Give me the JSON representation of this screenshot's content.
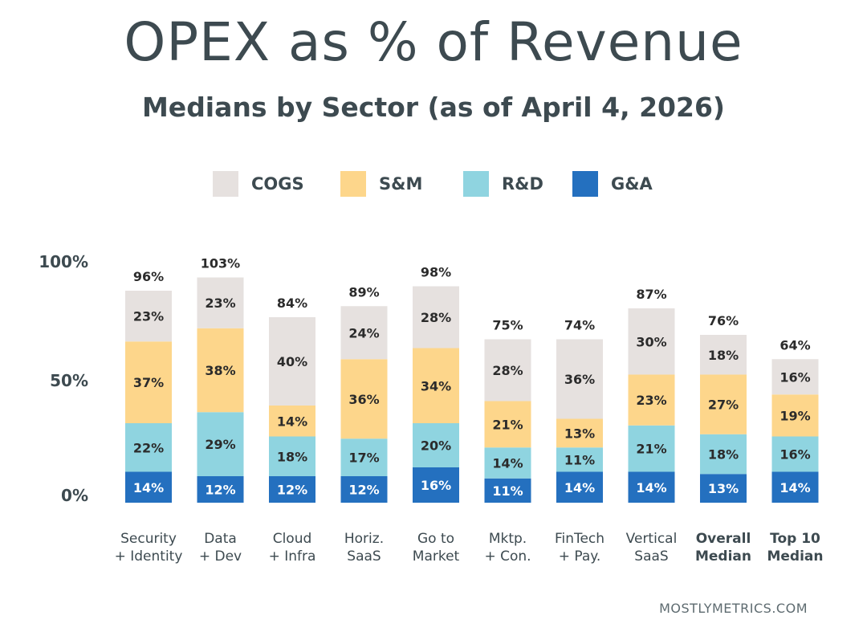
{
  "header": {
    "title": "OPEX as % of Revenue",
    "subtitle": "Medians by Sector (as of  April 4, 2026)"
  },
  "legend": [
    {
      "label": "COGS",
      "color": "#e6e1df"
    },
    {
      "label": "S&M",
      "color": "#fdd68b"
    },
    {
      "label": "R&D",
      "color": "#8fd4e0"
    },
    {
      "label": "G&A",
      "color": "#2470bf"
    }
  ],
  "footer": {
    "source": "MOSTLYMETRICS.COM"
  },
  "chart_data": {
    "type": "bar",
    "stacked": true,
    "ylim": [
      0,
      100
    ],
    "y_ticks": [
      "100%",
      "50%",
      "0%"
    ],
    "categories": [
      {
        "line1": "Security",
        "line2": "+ Identity",
        "bold": false
      },
      {
        "line1": "Data",
        "line2": "+ Dev",
        "bold": false
      },
      {
        "line1": "Cloud",
        "line2": "+ Infra",
        "bold": false
      },
      {
        "line1": "Horiz.",
        "line2": "SaaS",
        "bold": false
      },
      {
        "line1": "Go to",
        "line2": "Market",
        "bold": false
      },
      {
        "line1": "Mktp.",
        "line2": "+ Con.",
        "bold": false
      },
      {
        "line1": "FinTech",
        "line2": "+ Pay.",
        "bold": false
      },
      {
        "line1": "Vertical",
        "line2": "SaaS",
        "bold": false
      },
      {
        "line1": "Overall",
        "line2": "Median",
        "bold": true
      },
      {
        "line1": "Top 10",
        "line2": "Median",
        "bold": true
      }
    ],
    "series": [
      {
        "name": "G&A",
        "color": "#2470bf",
        "values": [
          14,
          12,
          12,
          12,
          16,
          11,
          14,
          14,
          13,
          14
        ]
      },
      {
        "name": "R&D",
        "color": "#8fd4e0",
        "values": [
          22,
          29,
          18,
          17,
          20,
          14,
          11,
          21,
          18,
          16
        ]
      },
      {
        "name": "S&M",
        "color": "#fdd68b",
        "values": [
          37,
          38,
          14,
          36,
          34,
          21,
          13,
          23,
          27,
          19
        ]
      },
      {
        "name": "COGS",
        "color": "#e6e1df",
        "values": [
          23,
          23,
          40,
          24,
          28,
          28,
          36,
          30,
          18,
          16
        ]
      }
    ],
    "totals": [
      96,
      103,
      84,
      89,
      98,
      75,
      74,
      87,
      76,
      64
    ]
  }
}
